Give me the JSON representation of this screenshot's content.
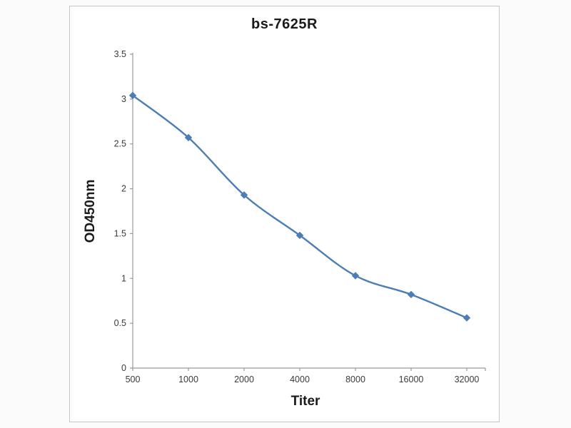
{
  "chart_data": {
    "type": "line",
    "title": "bs-7625R",
    "xlabel": "Titer",
    "ylabel": "OD450nm",
    "categories": [
      "500",
      "1000",
      "2000",
      "4000",
      "8000",
      "16000",
      "32000"
    ],
    "values": [
      3.04,
      2.57,
      1.93,
      1.48,
      1.03,
      0.82,
      0.56
    ],
    "ylim": [
      0,
      3.5
    ],
    "yticks": [
      0,
      0.5,
      1,
      1.5,
      2,
      2.5,
      3,
      3.5
    ],
    "ytick_labels": [
      "0",
      "0.5",
      "1",
      "1.5",
      "2",
      "2.5",
      "3",
      "3.5"
    ],
    "grid": false,
    "legend_position": "none",
    "marker": "diamond",
    "line_color": "#4d7db5",
    "marker_color": "#4d7db5",
    "axis_color": "#9a9a9a",
    "tick_label_color": "#3a3a3a",
    "panel_background": "#ffffff",
    "page_background": "#fbfbfb"
  }
}
